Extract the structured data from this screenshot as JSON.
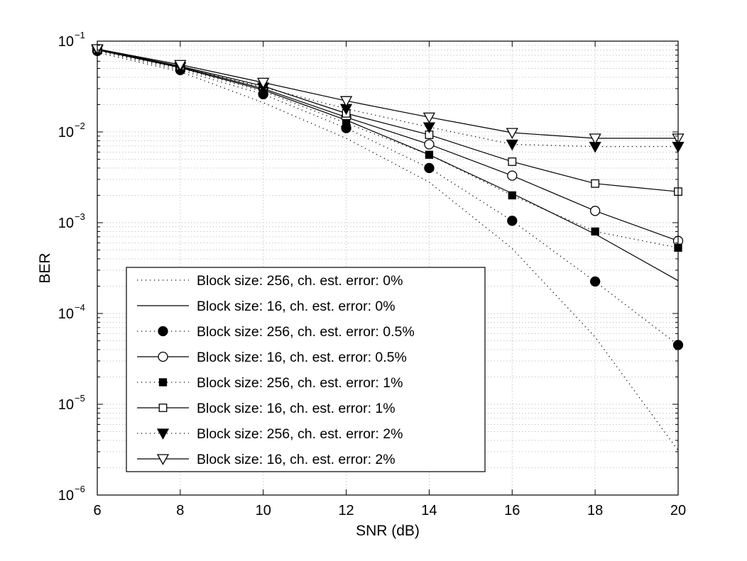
{
  "chart_data": {
    "type": "line",
    "title": "",
    "xlabel": "SNR (dB)",
    "ylabel": "BER",
    "xscale": "linear",
    "yscale": "log",
    "xlim": [
      6,
      20
    ],
    "ylim": [
      1e-06,
      0.1
    ],
    "grid": true,
    "grid_style": "dotted",
    "legend_location": "lower-left",
    "x_ticks": [
      {
        "value": 6,
        "label": "6"
      },
      {
        "value": 8,
        "label": "8"
      },
      {
        "value": 10,
        "label": "10"
      },
      {
        "value": 12,
        "label": "12"
      },
      {
        "value": 14,
        "label": "14"
      },
      {
        "value": 16,
        "label": "16"
      },
      {
        "value": 18,
        "label": "18"
      },
      {
        "value": 20,
        "label": "20"
      }
    ],
    "y_ticks": [
      {
        "value": 1e-06,
        "base": "10",
        "exp": "−6"
      },
      {
        "value": 1e-05,
        "base": "10",
        "exp": "−5"
      },
      {
        "value": 0.0001,
        "base": "10",
        "exp": "−4"
      },
      {
        "value": 0.001,
        "base": "10",
        "exp": "−3"
      },
      {
        "value": 0.01,
        "base": "10",
        "exp": "−2"
      },
      {
        "value": 0.1,
        "base": "10",
        "exp": "−1"
      }
    ],
    "series": [
      {
        "name": "Block size: 256, ch. est. error: 0%",
        "line": "dotted",
        "marker": "none",
        "x": [
          6,
          8,
          10,
          12,
          14,
          16,
          18,
          20
        ],
        "y": [
          0.075,
          0.046,
          0.021,
          0.0085,
          0.0028,
          0.00052,
          5.5e-05,
          3.1e-06
        ]
      },
      {
        "name": "Block size: 16, ch. est. error: 0%",
        "line": "solid",
        "marker": "none",
        "x": [
          6,
          8,
          10,
          12,
          14,
          16,
          18,
          20
        ],
        "y": [
          0.08,
          0.051,
          0.029,
          0.0135,
          0.0056,
          0.0021,
          0.00075,
          0.00023
        ]
      },
      {
        "name": "Block size: 256, ch. est. error: 0.5%",
        "line": "dotted",
        "marker": "filled-circle",
        "x": [
          6,
          8,
          10,
          12,
          14,
          16,
          18,
          20
        ],
        "y": [
          0.078,
          0.048,
          0.026,
          0.011,
          0.004,
          0.00105,
          0.000225,
          4.5e-05
        ]
      },
      {
        "name": "Block size: 16, ch. est. error: 0.5%",
        "line": "solid",
        "marker": "open-circle",
        "x": [
          6,
          8,
          10,
          12,
          14,
          16,
          18,
          20
        ],
        "y": [
          0.081,
          0.052,
          0.03,
          0.0145,
          0.0073,
          0.0033,
          0.00135,
          0.00063
        ]
      },
      {
        "name": "Block size: 256, ch. est. error: 1%",
        "line": "dotted",
        "marker": "filled-square",
        "x": [
          6,
          8,
          10,
          12,
          14,
          16,
          18,
          20
        ],
        "y": [
          0.079,
          0.05,
          0.028,
          0.0125,
          0.0056,
          0.002,
          0.0008,
          0.00053
        ]
      },
      {
        "name": "Block size: 16, ch. est. error: 1%",
        "line": "solid",
        "marker": "open-square",
        "x": [
          6,
          8,
          10,
          12,
          14,
          16,
          18,
          20
        ],
        "y": [
          0.082,
          0.053,
          0.032,
          0.016,
          0.0093,
          0.0047,
          0.0027,
          0.0022
        ]
      },
      {
        "name": "Block size: 256, ch. est. error: 2%",
        "line": "dotted",
        "marker": "filled-triangle-down",
        "x": [
          6,
          8,
          10,
          12,
          14,
          16,
          18,
          20
        ],
        "y": [
          0.08,
          0.052,
          0.031,
          0.018,
          0.0113,
          0.0073,
          0.0069,
          0.0069
        ]
      },
      {
        "name": "Block size: 16, ch. est. error: 2%",
        "line": "solid",
        "marker": "open-triangle-down",
        "x": [
          6,
          8,
          10,
          12,
          14,
          16,
          18,
          20
        ],
        "y": [
          0.082,
          0.055,
          0.035,
          0.022,
          0.0145,
          0.0098,
          0.0085,
          0.0085
        ]
      }
    ]
  }
}
